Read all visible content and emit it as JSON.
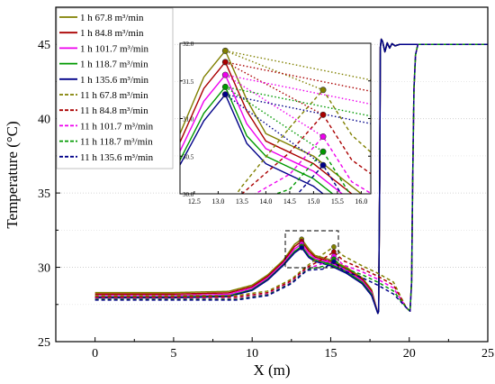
{
  "chart_data": {
    "type": "line",
    "xlabel": "X (m)",
    "ylabel": "Temperature (°C)",
    "xlim": [
      -2.5,
      25
    ],
    "ylim": [
      25,
      47.5
    ],
    "xticks": [
      "0",
      "5",
      "10",
      "15",
      "20",
      "25"
    ],
    "yticks": [
      "25",
      "30",
      "35",
      "40",
      "45"
    ],
    "grid": "horizontal-dotted",
    "legend_position": "top-left",
    "series": [
      {
        "name": "1 h  67.8 m³/min",
        "color": "#808000",
        "dash": "solid",
        "base": 28.3,
        "peak": 31.9,
        "shoulder": 30.5
      },
      {
        "name": "1 h  84.8 m³/min",
        "color": "#aa0000",
        "dash": "solid",
        "base": 28.2,
        "peak": 31.75,
        "shoulder": 30.4
      },
      {
        "name": "1 h  101.7 m³/min",
        "color": "#ee00ee",
        "dash": "solid",
        "base": 28.1,
        "peak": 31.58,
        "shoulder": 30.3
      },
      {
        "name": "1 h  118.7 m³/min",
        "color": "#009900",
        "dash": "solid",
        "base": 28.0,
        "peak": 31.42,
        "shoulder": 30.2
      },
      {
        "name": "1 h  135.6 m³/min",
        "color": "#000088",
        "dash": "solid",
        "base": 27.95,
        "peak": 31.32,
        "shoulder": 30.1
      },
      {
        "name": "11 h  67.8 m³/min",
        "color": "#808000",
        "dash": "dashed",
        "base": 28.1,
        "peak": 31.38,
        "shoulder": 29.6
      },
      {
        "name": "11 h  84.8 m³/min",
        "color": "#aa0000",
        "dash": "dashed",
        "base": 28.0,
        "peak": 31.05,
        "shoulder": 29.4
      },
      {
        "name": "11 h  101.7 m³/min",
        "color": "#ee00ee",
        "dash": "dashed",
        "base": 27.9,
        "peak": 30.76,
        "shoulder": 29.2
      },
      {
        "name": "11 h  118.7 m³/min",
        "color": "#009900",
        "dash": "dashed",
        "base": 27.85,
        "peak": 30.56,
        "shoulder": 29.0
      },
      {
        "name": "11 h  135.6 m³/min",
        "color": "#000088",
        "dash": "dashed",
        "base": 27.8,
        "peak": 30.38,
        "shoulder": 28.8
      }
    ],
    "inset": {
      "xlim": [
        12.2,
        16.2
      ],
      "ylim": [
        30.0,
        32.0
      ],
      "xticks": [
        "12.5",
        "13.0",
        "13.5",
        "14.0",
        "14.5",
        "15.0",
        "15.5",
        "16.0"
      ],
      "yticks": [
        "30.0",
        "30.5",
        "31.0",
        "31.5",
        "32.0"
      ],
      "peaks_1h": [
        {
          "x": 13.15,
          "y": 31.9
        },
        {
          "x": 13.15,
          "y": 31.75
        },
        {
          "x": 13.15,
          "y": 31.58
        },
        {
          "x": 13.15,
          "y": 31.42
        },
        {
          "x": 13.15,
          "y": 31.32
        }
      ],
      "peaks_11h": [
        {
          "x": 15.2,
          "y": 31.38
        },
        {
          "x": 15.2,
          "y": 31.05
        },
        {
          "x": 15.2,
          "y": 30.76
        },
        {
          "x": 15.2,
          "y": 30.56
        },
        {
          "x": 15.2,
          "y": 30.38
        }
      ]
    }
  }
}
